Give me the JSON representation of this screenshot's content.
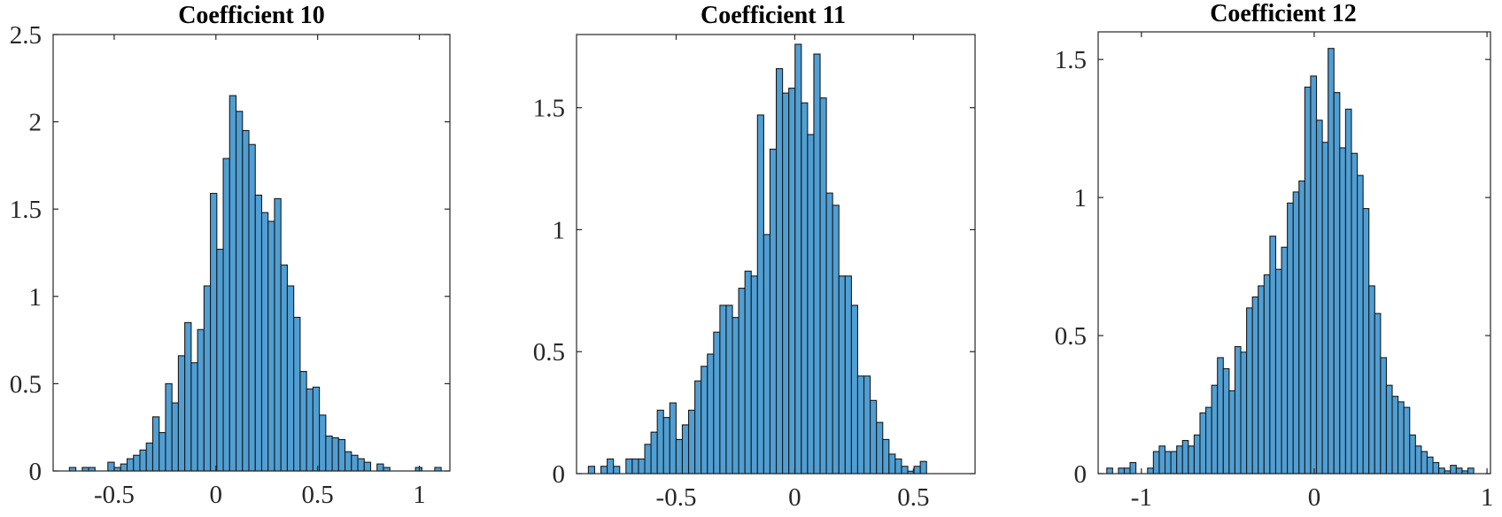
{
  "chart_data": [
    {
      "type": "bar",
      "title": "Coefficient 10",
      "xlim": [
        -0.8,
        1.15
      ],
      "ylim": [
        0,
        2.5
      ],
      "xticks": [
        -0.5,
        0,
        0.5,
        1
      ],
      "xtick_labels": [
        "-0.5",
        "0",
        "0.5",
        "1"
      ],
      "yticks": [
        0,
        0.5,
        1,
        1.5,
        2,
        2.5
      ],
      "ytick_labels": [
        "0",
        "0.5",
        "1",
        "1.5",
        "2",
        "2.5"
      ],
      "bin_start": -0.72,
      "bin_width": 0.0315,
      "values": [
        0.02,
        0,
        0.02,
        0.02,
        0,
        0,
        0.05,
        0.02,
        0.04,
        0.07,
        0.09,
        0.12,
        0.16,
        0.31,
        0.22,
        0.5,
        0.39,
        0.66,
        0.85,
        0.62,
        0.81,
        1.06,
        1.59,
        1.27,
        1.79,
        2.15,
        2.06,
        1.95,
        1.87,
        1.58,
        1.48,
        1.43,
        1.56,
        1.18,
        1.06,
        0.88,
        0.57,
        0.47,
        0.48,
        0.32,
        0.2,
        0.19,
        0.18,
        0.11,
        0.09,
        0.07,
        0.05,
        0,
        0.04,
        0.02,
        0,
        0,
        0,
        0,
        0.02,
        0,
        0,
        0.02
      ],
      "color": "#4f9fd4",
      "edge_color": "#1a1a1a",
      "grid": false
    },
    {
      "type": "bar",
      "title": "Coefficient 11",
      "xlim": [
        -0.92,
        0.76
      ],
      "ylim": [
        0,
        1.8
      ],
      "xticks": [
        -0.5,
        0,
        0.5
      ],
      "xtick_labels": [
        "-0.5",
        "0",
        "0.5"
      ],
      "yticks": [
        0,
        0.5,
        1,
        1.5
      ],
      "ytick_labels": [
        "0",
        "0.5",
        "1",
        "1.5"
      ],
      "bin_start": -0.87,
      "bin_width": 0.0264,
      "values": [
        0.03,
        0,
        0.03,
        0.06,
        0.03,
        0,
        0.06,
        0.06,
        0.06,
        0.12,
        0.17,
        0.26,
        0.23,
        0.29,
        0.14,
        0.2,
        0.26,
        0.38,
        0.44,
        0.49,
        0.58,
        0.69,
        0.69,
        0.64,
        0.76,
        0.83,
        0.81,
        1.47,
        0.98,
        1.33,
        1.66,
        1.56,
        1.58,
        1.76,
        1.52,
        1.39,
        1.72,
        1.54,
        1.15,
        1.1,
        0.81,
        0.81,
        0.69,
        0.4,
        0.4,
        0.3,
        0.21,
        0.14,
        0.08,
        0.06,
        0.03,
        0.01,
        0.03,
        0.05
      ],
      "color": "#4f9fd4",
      "edge_color": "#1a1a1a",
      "grid": false
    },
    {
      "type": "bar",
      "title": "Coefficient 12",
      "xlim": [
        -1.25,
        1.02
      ],
      "ylim": [
        0,
        1.6
      ],
      "xticks": [
        -1,
        0,
        1
      ],
      "xtick_labels": [
        "-1",
        "0",
        "1"
      ],
      "yticks": [
        0,
        0.5,
        1,
        1.5
      ],
      "ytick_labels": [
        "0",
        "0.5",
        "1",
        "1.5"
      ],
      "bin_start": -1.2,
      "bin_width": 0.0337,
      "values": [
        0.02,
        0,
        0.02,
        0.02,
        0.04,
        0,
        0,
        0.02,
        0.08,
        0.1,
        0.08,
        0.08,
        0.1,
        0.12,
        0.1,
        0.14,
        0.22,
        0.24,
        0.32,
        0.42,
        0.38,
        0.3,
        0.46,
        0.44,
        0.6,
        0.64,
        0.68,
        0.72,
        0.86,
        0.74,
        0.82,
        0.98,
        1.02,
        1.06,
        1.4,
        1.44,
        1.28,
        1.2,
        1.54,
        1.38,
        1.18,
        1.32,
        1.16,
        1.08,
        0.96,
        0.68,
        0.58,
        0.42,
        0.32,
        0.28,
        0.26,
        0.24,
        0.14,
        0.1,
        0.08,
        0.06,
        0.04,
        0.02,
        0.01,
        0.03,
        0.02,
        0.01,
        0.02
      ]
    }
  ]
}
